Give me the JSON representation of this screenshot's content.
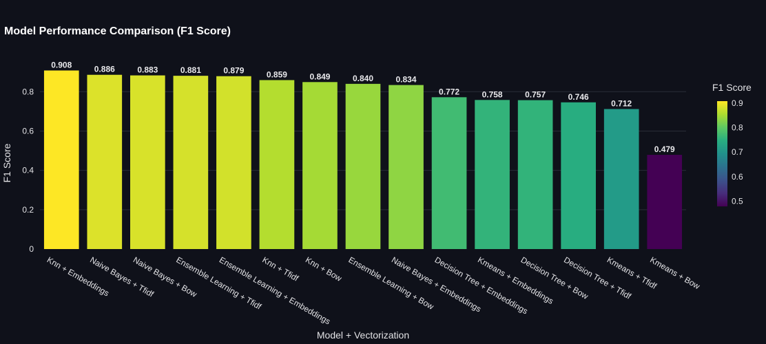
{
  "chart_data": {
    "type": "bar",
    "title": "Model Performance Comparison (F1 Score)",
    "xlabel": "Model + Vectorization",
    "ylabel": "F1 Score",
    "categories": [
      "Knn + Embeddings",
      "Naive Bayes + Tfidf",
      "Naive Bayes + Bow",
      "Ensemble Learning + Tfidf",
      "Ensemble Learning + Embeddings",
      "Knn + Tfidf",
      "Knn + Bow",
      "Ensemble Learning + Bow",
      "Naive Bayes + Embeddings",
      "Decision Tree + Embeddings",
      "Kmeans + Embeddings",
      "Decision Tree + Bow",
      "Decision Tree + Tfidf",
      "Kmeans + Tfidf",
      "Kmeans + Bow"
    ],
    "values": [
      0.908,
      0.886,
      0.883,
      0.881,
      0.879,
      0.859,
      0.849,
      0.84,
      0.834,
      0.772,
      0.758,
      0.757,
      0.746,
      0.712,
      0.479
    ],
    "data_labels": [
      "0.908",
      "0.886",
      "0.883",
      "0.881",
      "0.879",
      "0.859",
      "0.849",
      "0.840",
      "0.834",
      "0.772",
      "0.758",
      "0.757",
      "0.746",
      "0.712",
      "0.479"
    ],
    "ylim": [
      0,
      0.955
    ],
    "yticks": [
      0,
      0.2,
      0.4,
      0.6,
      0.8
    ],
    "ytick_labels": [
      "0",
      "0.2",
      "0.4",
      "0.6",
      "0.8"
    ],
    "grid": true,
    "colorscale": "Viridis",
    "color_range": [
      0.479,
      0.908
    ],
    "colorbar": {
      "title": "F1 Score",
      "ticks": [
        0.5,
        0.6,
        0.7,
        0.8,
        0.9
      ],
      "tick_labels": [
        "0.5",
        "0.6",
        "0.7",
        "0.8",
        "0.9"
      ]
    },
    "colors": {
      "background": "#0f111a",
      "grid": "#2a2d38",
      "text": "#e3e3e6"
    }
  }
}
